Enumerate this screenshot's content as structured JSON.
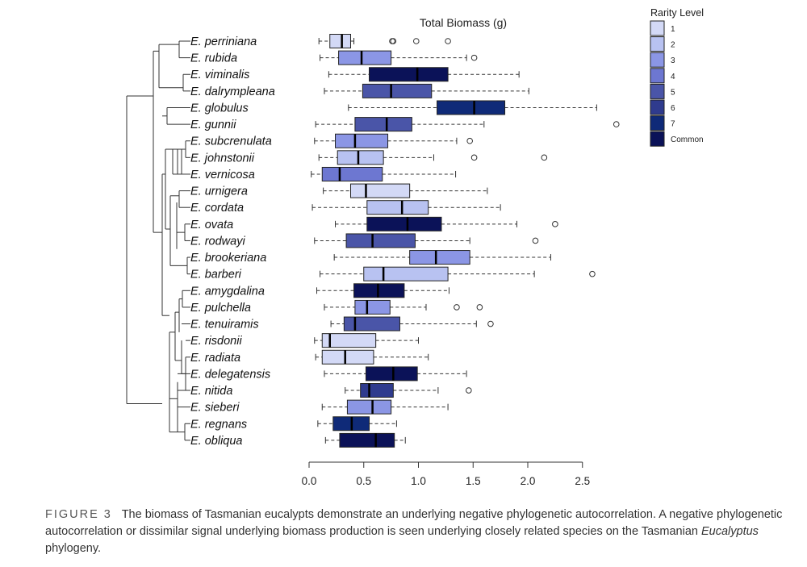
{
  "chart_data": {
    "type": "boxplot",
    "title": "Total Biomass (g)",
    "xlim": [
      0.0,
      2.5
    ],
    "xticks": [
      "0.0",
      "0.5",
      "1.0",
      "1.5",
      "2.0",
      "2.5"
    ],
    "tick_values": [
      0,
      0.5,
      1.0,
      1.5,
      2.0,
      2.5
    ],
    "legend": {
      "title": "Rarity Level",
      "placement": "top-right",
      "levels": [
        {
          "label": "1",
          "color": "#d3d9f6"
        },
        {
          "label": "2",
          "color": "#b8c2f1"
        },
        {
          "label": "3",
          "color": "#8b96e5"
        },
        {
          "label": "4",
          "color": "#6d77d1"
        },
        {
          "label": "5",
          "color": "#4a55a8"
        },
        {
          "label": "6",
          "color": "#2f3b8e"
        },
        {
          "label": "7",
          "color": "#0f2a78"
        },
        {
          "label": "Common",
          "color": "#0b1258"
        }
      ]
    },
    "species": [
      {
        "name": "E. perriniana",
        "level": "1",
        "whisker_low": 0.09,
        "q1": 0.19,
        "median": 0.3,
        "q3": 0.38,
        "whisker_high": 0.41,
        "outliers": [
          0.76,
          0.77,
          0.98,
          1.27
        ]
      },
      {
        "name": "E. rubida",
        "level": "3",
        "whisker_low": 0.1,
        "q1": 0.27,
        "median": 0.48,
        "q3": 0.75,
        "whisker_high": 1.44,
        "outliers": [
          1.51
        ]
      },
      {
        "name": "E. viminalis",
        "level": "Common",
        "whisker_low": 0.18,
        "q1": 0.55,
        "median": 0.99,
        "q3": 1.27,
        "whisker_high": 1.92,
        "outliers": []
      },
      {
        "name": "E. dalrympleana",
        "level": "5",
        "whisker_low": 0.14,
        "q1": 0.49,
        "median": 0.75,
        "q3": 1.12,
        "whisker_high": 2.01,
        "outliers": []
      },
      {
        "name": "E. globulus",
        "level": "7",
        "whisker_low": 0.36,
        "q1": 1.17,
        "median": 1.51,
        "q3": 1.79,
        "whisker_high": 2.63,
        "outliers": []
      },
      {
        "name": "E. gunnii",
        "level": "5",
        "whisker_low": 0.06,
        "q1": 0.42,
        "median": 0.71,
        "q3": 0.94,
        "whisker_high": 1.6,
        "outliers": [
          2.81
        ]
      },
      {
        "name": "E. subcrenulata",
        "level": "3",
        "whisker_low": 0.05,
        "q1": 0.24,
        "median": 0.42,
        "q3": 0.72,
        "whisker_high": 1.35,
        "outliers": [
          1.47
        ]
      },
      {
        "name": "E. johnstonii",
        "level": "2",
        "whisker_low": 0.09,
        "q1": 0.26,
        "median": 0.45,
        "q3": 0.68,
        "whisker_high": 1.14,
        "outliers": [
          1.51,
          2.15
        ]
      },
      {
        "name": "E. vernicosa",
        "level": "4",
        "whisker_low": 0.02,
        "q1": 0.12,
        "median": 0.28,
        "q3": 0.67,
        "whisker_high": 1.34,
        "outliers": []
      },
      {
        "name": "E. urnigera",
        "level": "1",
        "whisker_low": 0.13,
        "q1": 0.38,
        "median": 0.52,
        "q3": 0.92,
        "whisker_high": 1.63,
        "outliers": []
      },
      {
        "name": "E. cordata",
        "level": "2",
        "whisker_low": 0.03,
        "q1": 0.53,
        "median": 0.85,
        "q3": 1.09,
        "whisker_high": 1.75,
        "outliers": []
      },
      {
        "name": "E. ovata",
        "level": "Common",
        "whisker_low": 0.24,
        "q1": 0.53,
        "median": 0.9,
        "q3": 1.21,
        "whisker_high": 1.9,
        "outliers": [
          2.25
        ]
      },
      {
        "name": "E. rodwayi",
        "level": "5",
        "whisker_low": 0.05,
        "q1": 0.34,
        "median": 0.58,
        "q3": 0.97,
        "whisker_high": 1.47,
        "outliers": [
          2.07
        ]
      },
      {
        "name": "E. brookeriana",
        "level": "3",
        "whisker_low": 0.23,
        "q1": 0.92,
        "median": 1.16,
        "q3": 1.47,
        "whisker_high": 2.21,
        "outliers": []
      },
      {
        "name": "E. barberi",
        "level": "2",
        "whisker_low": 0.1,
        "q1": 0.5,
        "median": 0.68,
        "q3": 1.27,
        "whisker_high": 2.06,
        "outliers": [
          2.59
        ]
      },
      {
        "name": "E. amygdalina",
        "level": "Common",
        "whisker_low": 0.07,
        "q1": 0.41,
        "median": 0.63,
        "q3": 0.87,
        "whisker_high": 1.28,
        "outliers": []
      },
      {
        "name": "E. pulchella",
        "level": "3",
        "whisker_low": 0.14,
        "q1": 0.42,
        "median": 0.53,
        "q3": 0.74,
        "whisker_high": 1.07,
        "outliers": [
          1.35,
          1.56
        ]
      },
      {
        "name": "E. tenuiramis",
        "level": "5",
        "whisker_low": 0.2,
        "q1": 0.32,
        "median": 0.42,
        "q3": 0.83,
        "whisker_high": 1.53,
        "outliers": [
          1.66
        ]
      },
      {
        "name": "E. risdonii",
        "level": "1",
        "whisker_low": 0.05,
        "q1": 0.12,
        "median": 0.19,
        "q3": 0.61,
        "whisker_high": 1.0,
        "outliers": []
      },
      {
        "name": "E. radiata",
        "level": "1",
        "whisker_low": 0.06,
        "q1": 0.12,
        "median": 0.33,
        "q3": 0.59,
        "whisker_high": 1.09,
        "outliers": []
      },
      {
        "name": "E. delegatensis",
        "level": "Common",
        "whisker_low": 0.14,
        "q1": 0.52,
        "median": 0.77,
        "q3": 0.99,
        "whisker_high": 1.44,
        "outliers": []
      },
      {
        "name": "E. nitida",
        "level": "6",
        "whisker_low": 0.33,
        "q1": 0.47,
        "median": 0.55,
        "q3": 0.77,
        "whisker_high": 1.18,
        "outliers": [
          1.46
        ]
      },
      {
        "name": "E. sieberi",
        "level": "3",
        "whisker_low": 0.12,
        "q1": 0.35,
        "median": 0.58,
        "q3": 0.75,
        "whisker_high": 1.27,
        "outliers": []
      },
      {
        "name": "E. regnans",
        "level": "7",
        "whisker_low": 0.08,
        "q1": 0.22,
        "median": 0.39,
        "q3": 0.55,
        "whisker_high": 0.8,
        "outliers": []
      },
      {
        "name": "E. obliqua",
        "level": "Common",
        "whisker_low": 0.15,
        "q1": 0.28,
        "median": 0.61,
        "q3": 0.78,
        "whisker_high": 0.88,
        "outliers": []
      }
    ],
    "tree_edges": [
      [
        3,
        8
      ],
      [
        3,
        15
      ],
      [
        15,
        12
      ],
      [
        15,
        16
      ],
      [
        16,
        20
      ],
      [
        16,
        22
      ],
      [
        16,
        27
      ],
      [
        16,
        34
      ],
      [
        15,
        14
      ],
      [
        14,
        17
      ],
      [
        14,
        18
      ],
      [
        18,
        24
      ],
      [
        18,
        28
      ],
      [
        8,
        25
      ],
      [
        25,
        30
      ],
      [
        30,
        38
      ],
      [
        38,
        42
      ],
      [
        42,
        45
      ],
      [
        45,
        46
      ],
      [
        46,
        47
      ],
      [
        46,
        48
      ],
      [
        45,
        52
      ],
      [
        42,
        50
      ],
      [
        38,
        49
      ],
      [
        30,
        40
      ],
      [
        40,
        41
      ],
      [
        41,
        43
      ],
      [
        43,
        44
      ],
      [
        43,
        51
      ],
      [
        41,
        53
      ],
      [
        40,
        54
      ],
      [
        25,
        32
      ],
      [
        32,
        36
      ],
      [
        36,
        37
      ],
      [
        37,
        39
      ],
      [
        39,
        55
      ],
      [
        39,
        56
      ],
      [
        37,
        57
      ],
      [
        36,
        58
      ],
      [
        32,
        60
      ],
      [
        60,
        59
      ],
      [
        60,
        61
      ]
    ]
  },
  "caption": {
    "label": "FIGURE 3",
    "text_part1": "The biomass of Tasmanian eucalypts demonstrate an underlying negative phylogenetic autocorrelation. A negative phylogenetic autocorrelation or dissimilar signal underlying biomass production is seen underlying closely related species on the Tasmanian",
    "italic_word": "Eucalyptus",
    "text_part2": "phylogeny."
  }
}
